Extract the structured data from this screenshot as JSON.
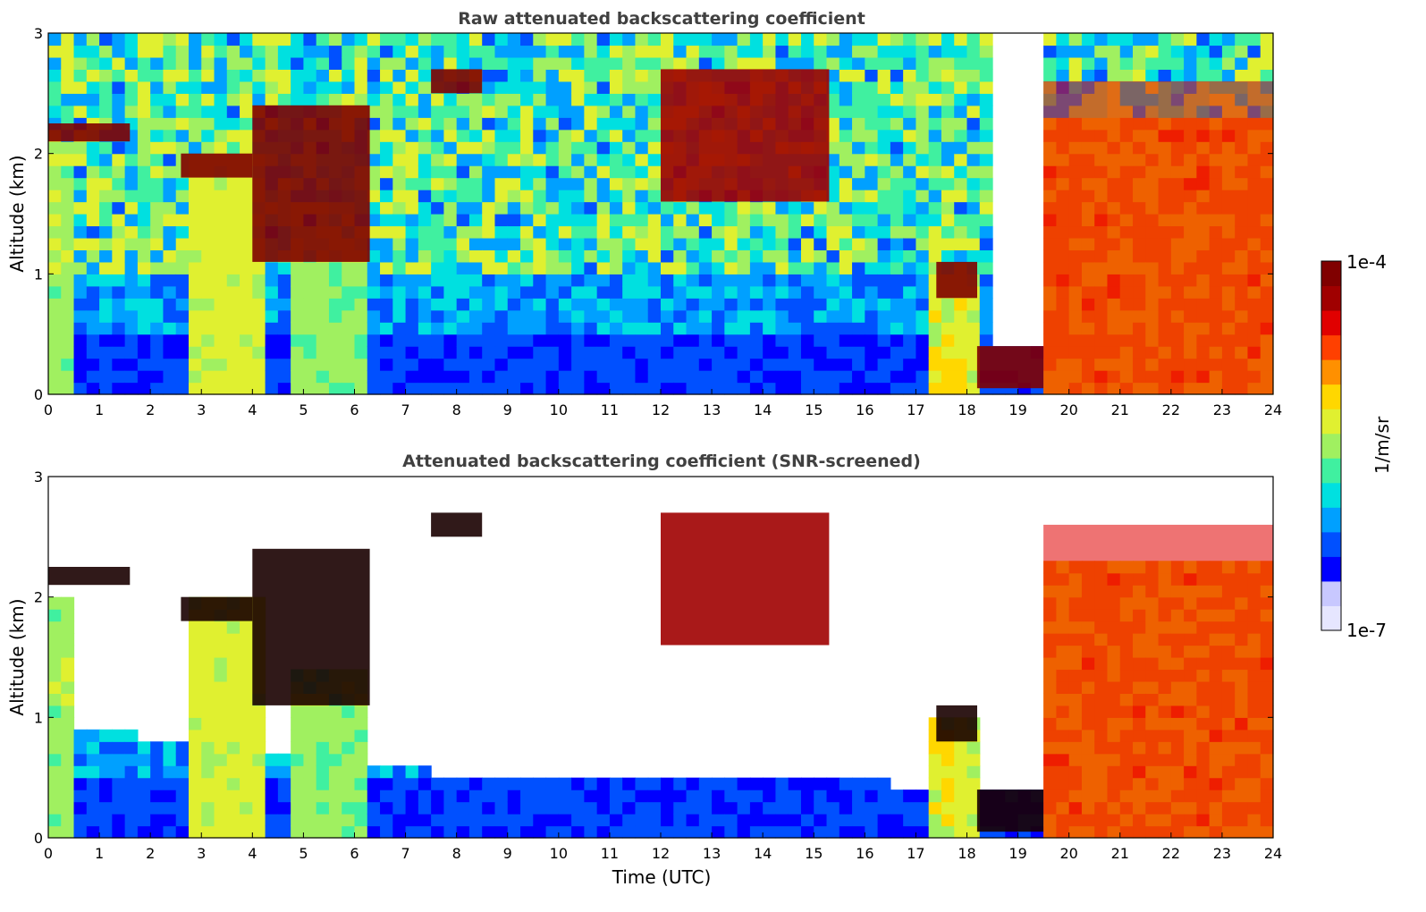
{
  "chart_data": [
    {
      "type": "heatmap",
      "title": "Raw attenuated backscattering coefficient",
      "xlabel": "",
      "ylabel": "Altitude (km)",
      "xlim": [
        0,
        24
      ],
      "ylim": [
        0,
        3
      ],
      "xticks": [
        "0",
        "1",
        "2",
        "3",
        "4",
        "5",
        "6",
        "7",
        "8",
        "9",
        "10",
        "11",
        "12",
        "13",
        "14",
        "15",
        "16",
        "17",
        "18",
        "19",
        "20",
        "21",
        "22",
        "23",
        "24"
      ],
      "yticks": [
        "0",
        "1",
        "2",
        "3"
      ],
      "layers": [
        {
          "feature": "high cloud band",
          "x": [
            0.0,
            1.6
          ],
          "y": [
            2.1,
            2.25
          ],
          "level": 1.0
        },
        {
          "feature": "cloud descending",
          "x": [
            2.6,
            4.0
          ],
          "y": [
            1.8,
            2.0
          ],
          "level": 1.0
        },
        {
          "feature": "broken cloud",
          "x": [
            4.0,
            6.3
          ],
          "y": [
            1.1,
            2.4
          ],
          "level": 1.0
        },
        {
          "feature": "elevated cloud",
          "x": [
            7.5,
            8.5
          ],
          "y": [
            2.5,
            2.7
          ],
          "level": 1.0
        },
        {
          "feature": "cloud patches",
          "x": [
            12.0,
            15.3
          ],
          "y": [
            1.6,
            2.7
          ],
          "level": 0.9
        },
        {
          "feature": "low cloud",
          "x": [
            17.4,
            18.2
          ],
          "y": [
            0.8,
            1.1
          ],
          "level": 1.0
        },
        {
          "feature": "cloud base",
          "x": [
            18.2,
            19.5
          ],
          "y": [
            0.05,
            0.4
          ],
          "level": 1.0
        },
        {
          "feature": "precipitating cloud",
          "x": [
            19.5,
            24.0
          ],
          "y": [
            0.0,
            2.6
          ],
          "level": 0.8
        }
      ]
    },
    {
      "type": "heatmap",
      "title": "Attenuated backscattering coefficient (SNR-screened)",
      "xlabel": "Time (UTC)",
      "ylabel": "Altitude (km)",
      "xlim": [
        0,
        24
      ],
      "ylim": [
        0,
        3
      ],
      "xticks": [
        "0",
        "1",
        "2",
        "3",
        "4",
        "5",
        "6",
        "7",
        "8",
        "9",
        "10",
        "11",
        "12",
        "13",
        "14",
        "15",
        "16",
        "17",
        "18",
        "19",
        "20",
        "21",
        "22",
        "23",
        "24"
      ],
      "yticks": [
        "0",
        "1",
        "2",
        "3"
      ],
      "boundary_layer_top_km": [
        0.85,
        0.8,
        0.7,
        0.55,
        0.45,
        0.5,
        0.5,
        0.5,
        0.45,
        0.4,
        0.55,
        0.45,
        0.5
      ]
    }
  ],
  "colorbar": {
    "label": "1/m/sr",
    "min_label": "1e-7",
    "max_label": "1e-4",
    "colors": [
      "#e6e6ff",
      "#c8c8ff",
      "#0000ff",
      "#0050ff",
      "#00a0ff",
      "#00e0e0",
      "#40f0a0",
      "#a0f060",
      "#e0f030",
      "#ffd700",
      "#ff9000",
      "#ff4000",
      "#e00000",
      "#a00000",
      "#800000"
    ]
  }
}
